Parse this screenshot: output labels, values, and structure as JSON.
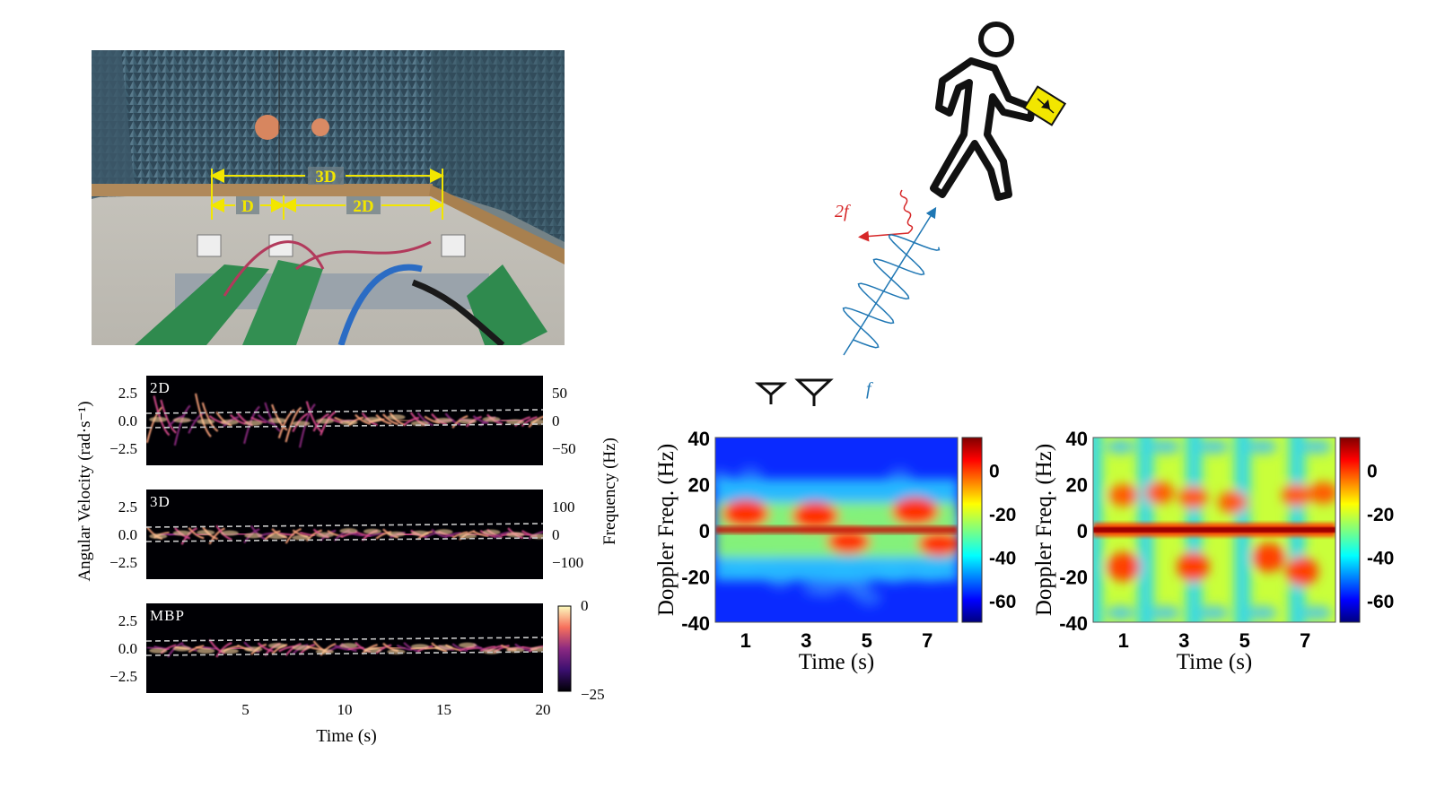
{
  "photo": {
    "labels": {
      "span_3d": "3D",
      "span_d": "D",
      "span_2d": "2D"
    }
  },
  "illustration": {
    "tx_freq_label": "f",
    "rx_freq_label": "2f",
    "colors": {
      "tx": "#1f77b4",
      "rx": "#d62728",
      "tag": "#f2e600"
    }
  },
  "colors": {
    "magma_dark": "#000004",
    "magma_mid": "#b73779",
    "magma_light": "#fcfdbf",
    "jet_low": "#00007f",
    "jet_mid": "#7fff7f",
    "jet_high": "#7f0000"
  },
  "chart_data": [
    {
      "type": "heatmap",
      "id": "left-stack",
      "panels": [
        {
          "tag": "2D",
          "yticks_left": [
            "2.5",
            "0.0",
            "−2.5"
          ],
          "yticks_right": [
            "50",
            "0",
            "−50"
          ]
        },
        {
          "tag": "3D",
          "yticks_left": [
            "2.5",
            "0.0",
            "−2.5"
          ],
          "yticks_right": [
            "100",
            "0",
            "−100"
          ]
        },
        {
          "tag": "MBP",
          "yticks_left": [
            "2.5",
            "0.0",
            "−2.5"
          ],
          "yticks_right": []
        }
      ],
      "xlabel": "Time (s)",
      "xticks": [
        "5",
        "10",
        "15",
        "20"
      ],
      "xlim": [
        0,
        20
      ],
      "ylabel_left": "Angular Velocity (rad·s⁻¹)",
      "ylabel_right": "Frequency (Hz)",
      "colorbar": {
        "ticks": [
          "0",
          "−25"
        ],
        "range": [
          -25,
          0
        ],
        "colormap": "magma"
      }
    },
    {
      "type": "heatmap",
      "id": "doppler-walking",
      "ylabel": "Doppler Freq. (Hz)",
      "yticks": [
        "40",
        "20",
        "0",
        "-20",
        "-40"
      ],
      "ylim": [
        -40,
        40
      ],
      "xlabel": "Time (s)",
      "xticks": [
        "1",
        "3",
        "5",
        "7"
      ],
      "xlim": [
        0,
        8
      ],
      "colorbar": {
        "ticks": [
          "0",
          "-20",
          "-40",
          "-60"
        ],
        "range": [
          -70,
          15
        ],
        "colormap": "jet"
      }
    },
    {
      "type": "heatmap",
      "id": "doppler-tag",
      "ylabel": "Doppler Freq. (Hz)",
      "yticks": [
        "40",
        "20",
        "0",
        "-20",
        "-40"
      ],
      "ylim": [
        -40,
        40
      ],
      "xlabel": "Time (s)",
      "xticks": [
        "1",
        "3",
        "5",
        "7"
      ],
      "xlim": [
        0,
        8
      ],
      "colorbar": {
        "ticks": [
          "0",
          "-20",
          "-40",
          "-60"
        ],
        "range": [
          -70,
          15
        ],
        "colormap": "jet"
      }
    }
  ]
}
